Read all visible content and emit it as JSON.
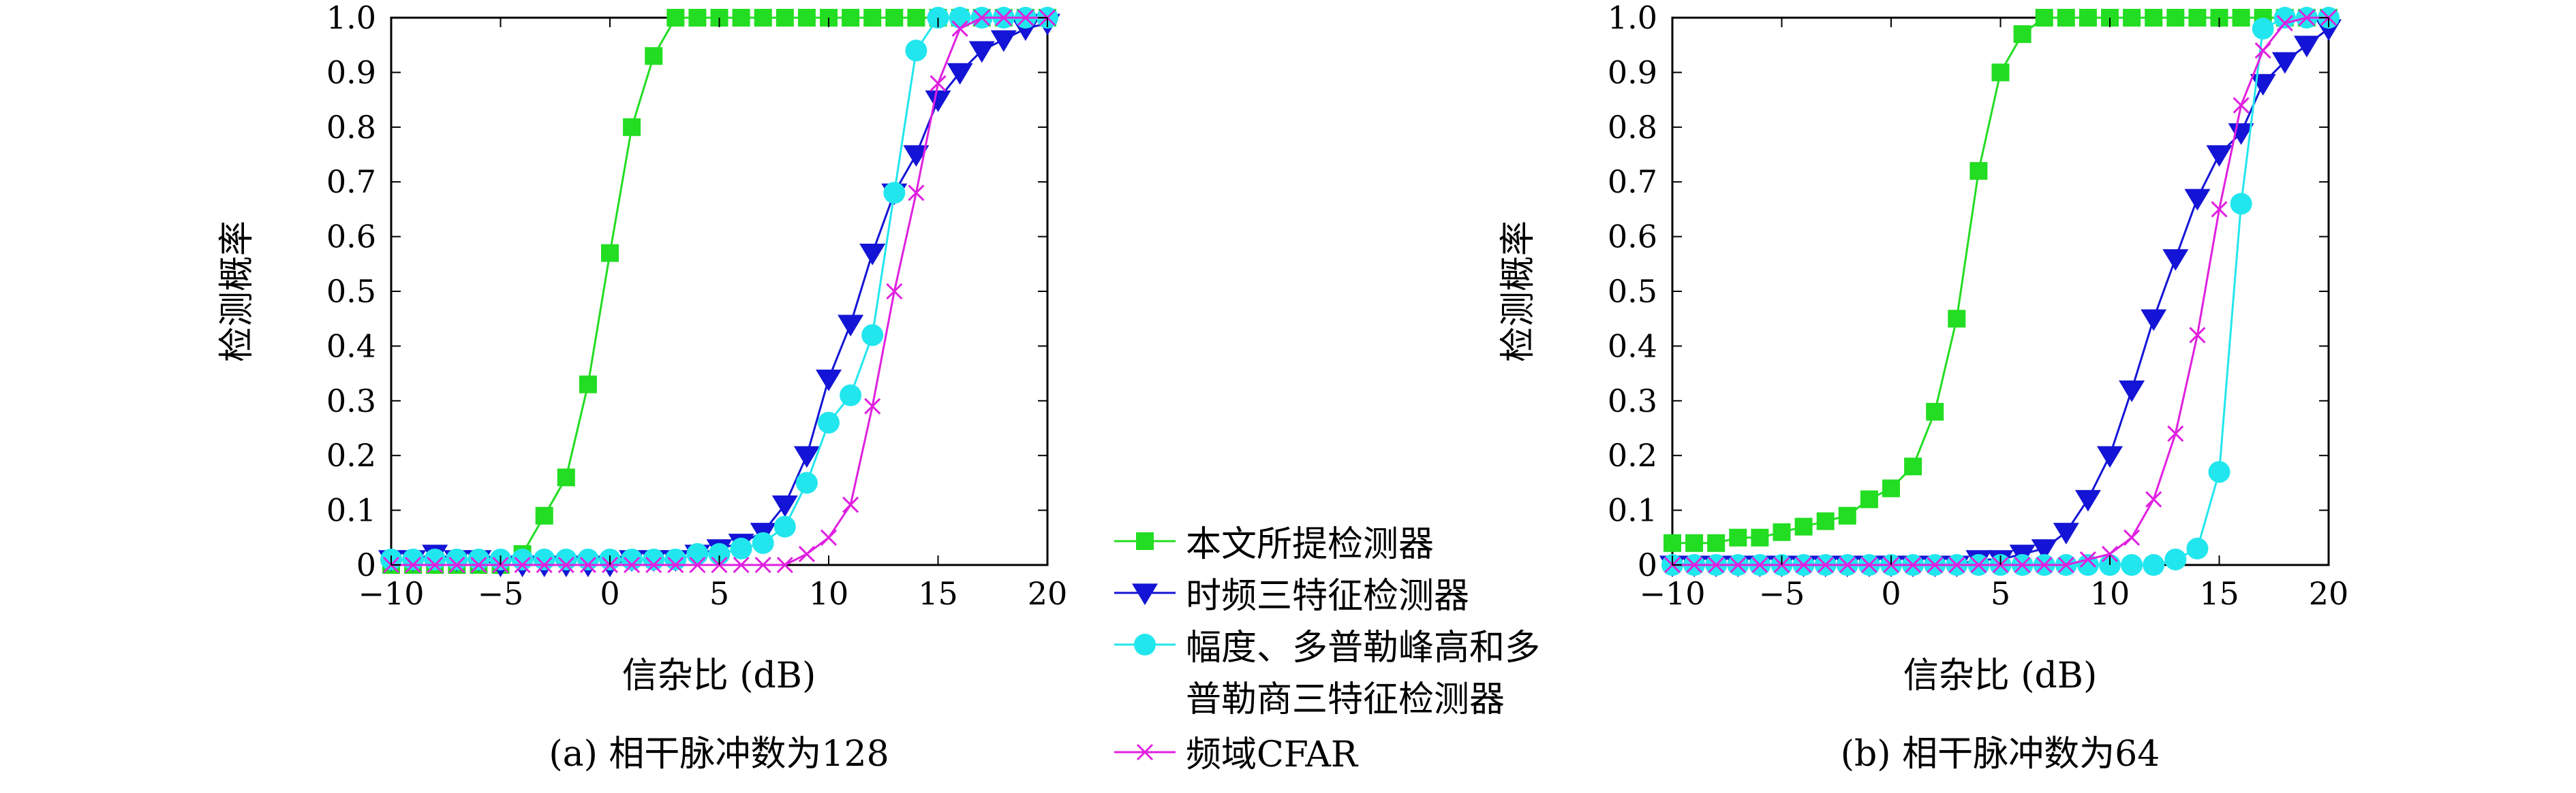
{
  "chart_data": [
    {
      "type": "line",
      "title": "",
      "caption": "(a) 相干脉冲数为128",
      "xlabel": "信杂比 (dB)",
      "ylabel": "检测概率",
      "xlim": [
        -10,
        20
      ],
      "ylim": [
        0,
        1
      ],
      "xticks": [
        "−10",
        "−5",
        "0",
        "5",
        "10",
        "15",
        "20"
      ],
      "yticks": [
        "0",
        "0.1",
        "0.2",
        "0.3",
        "0.4",
        "0.5",
        "0.6",
        "0.7",
        "0.8",
        "0.9",
        "1.0"
      ],
      "grid": false,
      "series": [
        {
          "name": "本文所提检测器",
          "color": "#22dd22",
          "marker": "square",
          "x": [
            -10,
            -9,
            -8,
            -7,
            -6,
            -5,
            -4,
            -3,
            -2,
            -1,
            0,
            1,
            2,
            3,
            4,
            5,
            6,
            7,
            8,
            9,
            10,
            11,
            12,
            13,
            14,
            15,
            16,
            17,
            18,
            19,
            20
          ],
          "y": [
            0,
            0,
            0,
            0,
            0,
            0,
            0.02,
            0.09,
            0.16,
            0.33,
            0.57,
            0.8,
            0.93,
            1,
            1,
            1,
            1,
            1,
            1,
            1,
            1,
            1,
            1,
            1,
            1,
            1,
            1,
            1,
            1,
            1,
            1
          ]
        },
        {
          "name": "时频三特征检测器",
          "color": "#1414d6",
          "marker": "triangle-down",
          "x": [
            -10,
            -9,
            -8,
            -7,
            -6,
            -5,
            -4,
            -3,
            -2,
            -1,
            0,
            1,
            2,
            3,
            4,
            5,
            6,
            7,
            8,
            9,
            10,
            11,
            12,
            13,
            14,
            15,
            16,
            17,
            18,
            19,
            20
          ],
          "y": [
            0.01,
            0.01,
            0.02,
            0.01,
            0.01,
            0,
            0,
            0,
            0,
            0,
            0,
            0.01,
            0.01,
            0.01,
            0.02,
            0.03,
            0.04,
            0.06,
            0.11,
            0.2,
            0.34,
            0.44,
            0.57,
            0.68,
            0.75,
            0.85,
            0.9,
            0.94,
            0.96,
            0.98,
            0.99
          ]
        },
        {
          "name": "幅度、多普勒峰高和多普勒商三特征检测器",
          "color": "#22e6ee",
          "marker": "circle",
          "x": [
            -10,
            -9,
            -8,
            -7,
            -6,
            -5,
            -4,
            -3,
            -2,
            -1,
            0,
            1,
            2,
            3,
            4,
            5,
            6,
            7,
            8,
            9,
            10,
            11,
            12,
            13,
            14,
            15,
            16,
            17,
            18,
            19,
            20
          ],
          "y": [
            0.01,
            0.01,
            0.01,
            0.01,
            0.01,
            0.01,
            0.01,
            0.01,
            0.01,
            0.01,
            0.01,
            0.01,
            0.01,
            0.01,
            0.02,
            0.02,
            0.03,
            0.04,
            0.07,
            0.15,
            0.26,
            0.31,
            0.42,
            0.68,
            0.94,
            1,
            1,
            1,
            1,
            1,
            1
          ]
        },
        {
          "name": "频域CFAR",
          "color": "#e020e0",
          "marker": "x",
          "x": [
            -10,
            -9,
            -8,
            -7,
            -6,
            -5,
            -4,
            -3,
            -2,
            -1,
            0,
            1,
            2,
            3,
            4,
            5,
            6,
            7,
            8,
            9,
            10,
            11,
            12,
            13,
            14,
            15,
            16,
            17,
            18,
            19,
            20
          ],
          "y": [
            0,
            0,
            0,
            0,
            0,
            0,
            0,
            0,
            0,
            0,
            0,
            0,
            0,
            0,
            0,
            0,
            0,
            0,
            0,
            0.02,
            0.05,
            0.11,
            0.29,
            0.5,
            0.68,
            0.88,
            0.98,
            1,
            1,
            1,
            1
          ]
        }
      ]
    },
    {
      "type": "line",
      "title": "",
      "caption": "(b) 相干脉冲数为64",
      "xlabel": "信杂比 (dB)",
      "ylabel": "检测概率",
      "xlim": [
        -10,
        20
      ],
      "ylim": [
        0,
        1
      ],
      "xticks": [
        "−10",
        "−5",
        "0",
        "5",
        "10",
        "15",
        "20"
      ],
      "yticks": [
        "0",
        "0.1",
        "0.2",
        "0.3",
        "0.4",
        "0.5",
        "0.6",
        "0.7",
        "0.8",
        "0.9",
        "1.0"
      ],
      "grid": false,
      "series": [
        {
          "name": "本文所提检测器",
          "color": "#22dd22",
          "marker": "square",
          "x": [
            -10,
            -9,
            -8,
            -7,
            -6,
            -5,
            -4,
            -3,
            -2,
            -1,
            0,
            1,
            2,
            3,
            4,
            5,
            6,
            7,
            8,
            9,
            10,
            11,
            12,
            13,
            14,
            15,
            16,
            17,
            18,
            19,
            20
          ],
          "y": [
            0.04,
            0.04,
            0.04,
            0.05,
            0.05,
            0.06,
            0.07,
            0.08,
            0.09,
            0.12,
            0.14,
            0.18,
            0.28,
            0.45,
            0.72,
            0.9,
            0.97,
            1,
            1,
            1,
            1,
            1,
            1,
            1,
            1,
            1,
            1,
            1,
            1,
            1,
            1
          ]
        },
        {
          "name": "时频三特征检测器",
          "color": "#1414d6",
          "marker": "triangle-down",
          "x": [
            -10,
            -9,
            -8,
            -7,
            -6,
            -5,
            -4,
            -3,
            -2,
            -1,
            0,
            1,
            2,
            3,
            4,
            5,
            6,
            7,
            8,
            9,
            10,
            11,
            12,
            13,
            14,
            15,
            16,
            17,
            18,
            19,
            20
          ],
          "y": [
            0,
            0,
            0,
            0,
            0,
            0,
            0,
            0,
            0,
            0,
            0,
            0,
            0,
            0,
            0.01,
            0.01,
            0.02,
            0.03,
            0.06,
            0.12,
            0.2,
            0.32,
            0.45,
            0.56,
            0.67,
            0.75,
            0.79,
            0.88,
            0.92,
            0.95,
            0.98
          ]
        },
        {
          "name": "幅度、多普勒峰高和多普勒商三特征检测器",
          "color": "#22e6ee",
          "marker": "circle",
          "x": [
            -10,
            -9,
            -8,
            -7,
            -6,
            -5,
            -4,
            -3,
            -2,
            -1,
            0,
            1,
            2,
            3,
            4,
            5,
            6,
            7,
            8,
            9,
            10,
            11,
            12,
            13,
            14,
            15,
            16,
            17,
            18,
            19,
            20
          ],
          "y": [
            0,
            0,
            0,
            0,
            0,
            0,
            0,
            0,
            0,
            0,
            0,
            0,
            0,
            0,
            0,
            0,
            0,
            0,
            0,
            0,
            0,
            0,
            0,
            0.01,
            0.03,
            0.17,
            0.66,
            0.98,
            1,
            1,
            1
          ]
        },
        {
          "name": "频域CFAR",
          "color": "#e020e0",
          "marker": "x",
          "x": [
            -10,
            -9,
            -8,
            -7,
            -6,
            -5,
            -4,
            -3,
            -2,
            -1,
            0,
            1,
            2,
            3,
            4,
            5,
            6,
            7,
            8,
            9,
            10,
            11,
            12,
            13,
            14,
            15,
            16,
            17,
            18,
            19,
            20
          ],
          "y": [
            0,
            0,
            0,
            0,
            0,
            0,
            0,
            0,
            0,
            0,
            0,
            0,
            0,
            0,
            0,
            0,
            0,
            0,
            0,
            0.01,
            0.02,
            0.05,
            0.12,
            0.24,
            0.42,
            0.65,
            0.84,
            0.94,
            0.99,
            1,
            1
          ]
        }
      ]
    }
  ],
  "legend": {
    "placement": "center-bottom",
    "entries": [
      {
        "label": "本文所提检测器",
        "color": "#22dd22",
        "marker": "square"
      },
      {
        "label": "时频三特征检测器",
        "color": "#1414d6",
        "marker": "triangle-down"
      },
      {
        "label_line1": "幅度、多普勒峰高和多",
        "label_line2": "普勒商三特征检测器",
        "color": "#22e6ee",
        "marker": "circle"
      },
      {
        "label": "频域CFAR",
        "color": "#e020e0",
        "marker": "x"
      }
    ]
  }
}
